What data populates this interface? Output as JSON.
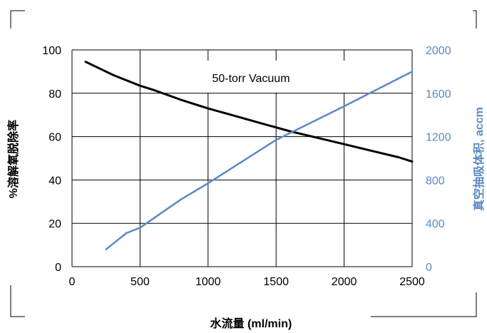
{
  "chart_data": {
    "type": "line",
    "annotation": "50-torr Vacuum",
    "xlabel": "水流量 (ml/min)",
    "ylabel": "%溶解氧脱除率",
    "y2label": "真空抽吸体积, accm",
    "xlim": [
      0,
      2500
    ],
    "ylim": [
      0,
      100
    ],
    "y2lim": [
      0,
      2000
    ],
    "x_ticks": [
      "0",
      "500",
      "1000",
      "1500",
      "2000",
      "2500"
    ],
    "y_ticks": [
      "0",
      "20",
      "40",
      "60",
      "80",
      "100"
    ],
    "y2_ticks": [
      "0",
      "400",
      "800",
      "1200",
      "1600",
      "2000"
    ],
    "grid": true,
    "colors": {
      "removal": "#000000",
      "vacuum": "#5b8ac5",
      "grid": "#000000",
      "right_axis_text": "#5b8ac5"
    },
    "series": [
      {
        "axis": "left",
        "x": [
          100,
          200,
          300,
          400,
          500,
          600,
          800,
          1000,
          1200,
          1400,
          1600,
          1800,
          2000,
          2200,
          2400,
          2500
        ],
        "values": [
          94.5,
          91.5,
          88.5,
          86,
          83.5,
          81.5,
          77,
          73,
          69.5,
          66,
          62.5,
          59.5,
          56.5,
          53.5,
          50.5,
          48.5
        ]
      },
      {
        "axis": "right",
        "x": [
          250,
          400,
          500,
          800,
          1000,
          1500,
          2000,
          2500
        ],
        "values": [
          160,
          310,
          360,
          620,
          770,
          1170,
          1480,
          1800
        ]
      }
    ]
  }
}
